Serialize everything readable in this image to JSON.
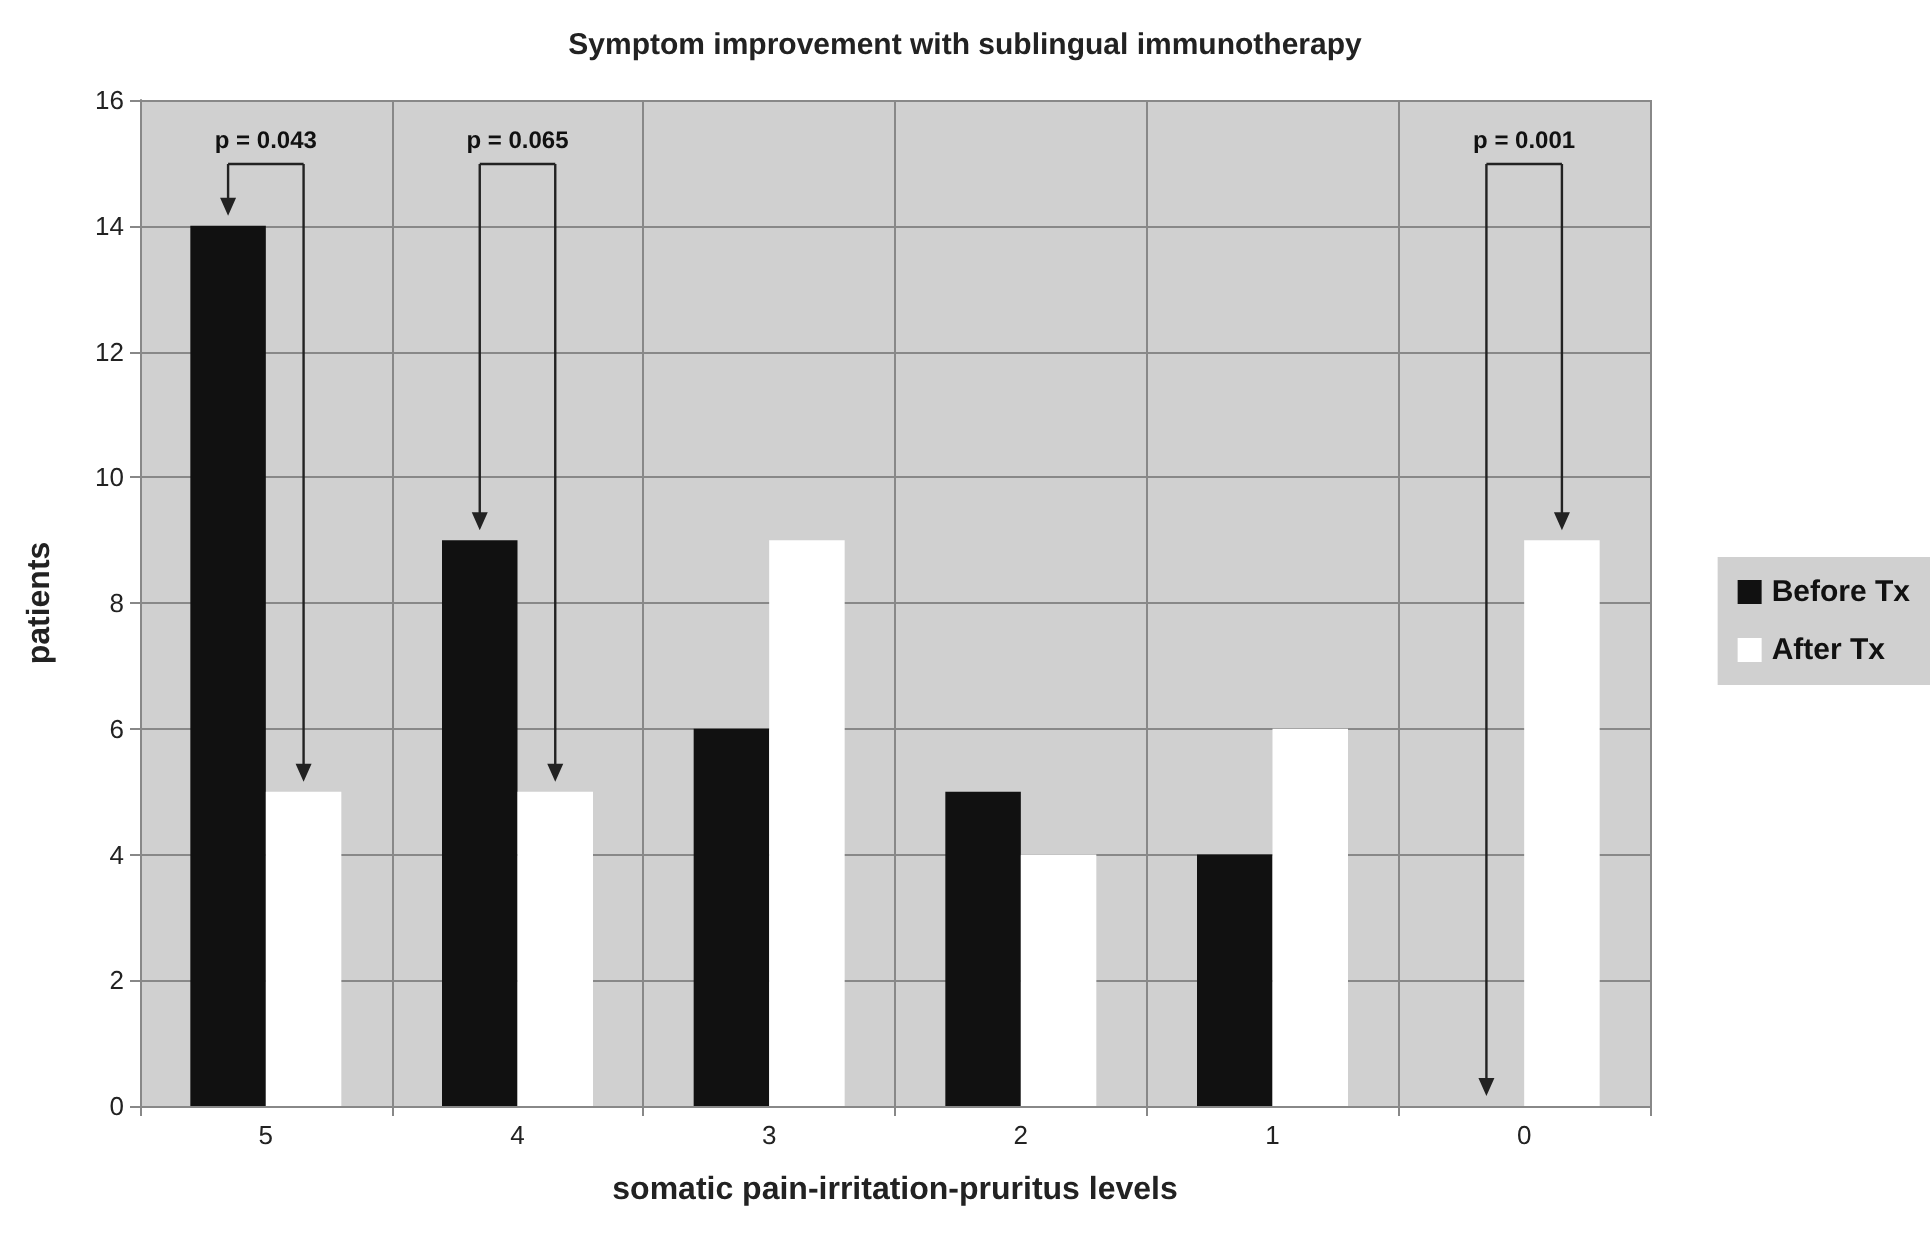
{
  "chart_data": {
    "type": "bar",
    "title": "Symptom improvement with sublingual immunotherapy",
    "xlabel": "somatic pain-irritation-pruritus levels",
    "ylabel": "patients",
    "categories": [
      "5",
      "4",
      "3",
      "2",
      "1",
      "0"
    ],
    "series": [
      {
        "name": "Before Tx",
        "color": "#111111",
        "values": [
          14,
          9,
          6,
          5,
          4,
          0
        ]
      },
      {
        "name": "After Tx",
        "color": "#ffffff",
        "values": [
          5,
          5,
          9,
          4,
          6,
          9
        ]
      }
    ],
    "ylim": [
      0,
      16
    ],
    "yticks": [
      0,
      2,
      4,
      6,
      8,
      10,
      12,
      14,
      16
    ],
    "grid": true,
    "legend": "right",
    "annotations": [
      "p = 0.043",
      "p = 0.065",
      "p = 0.001"
    ]
  }
}
